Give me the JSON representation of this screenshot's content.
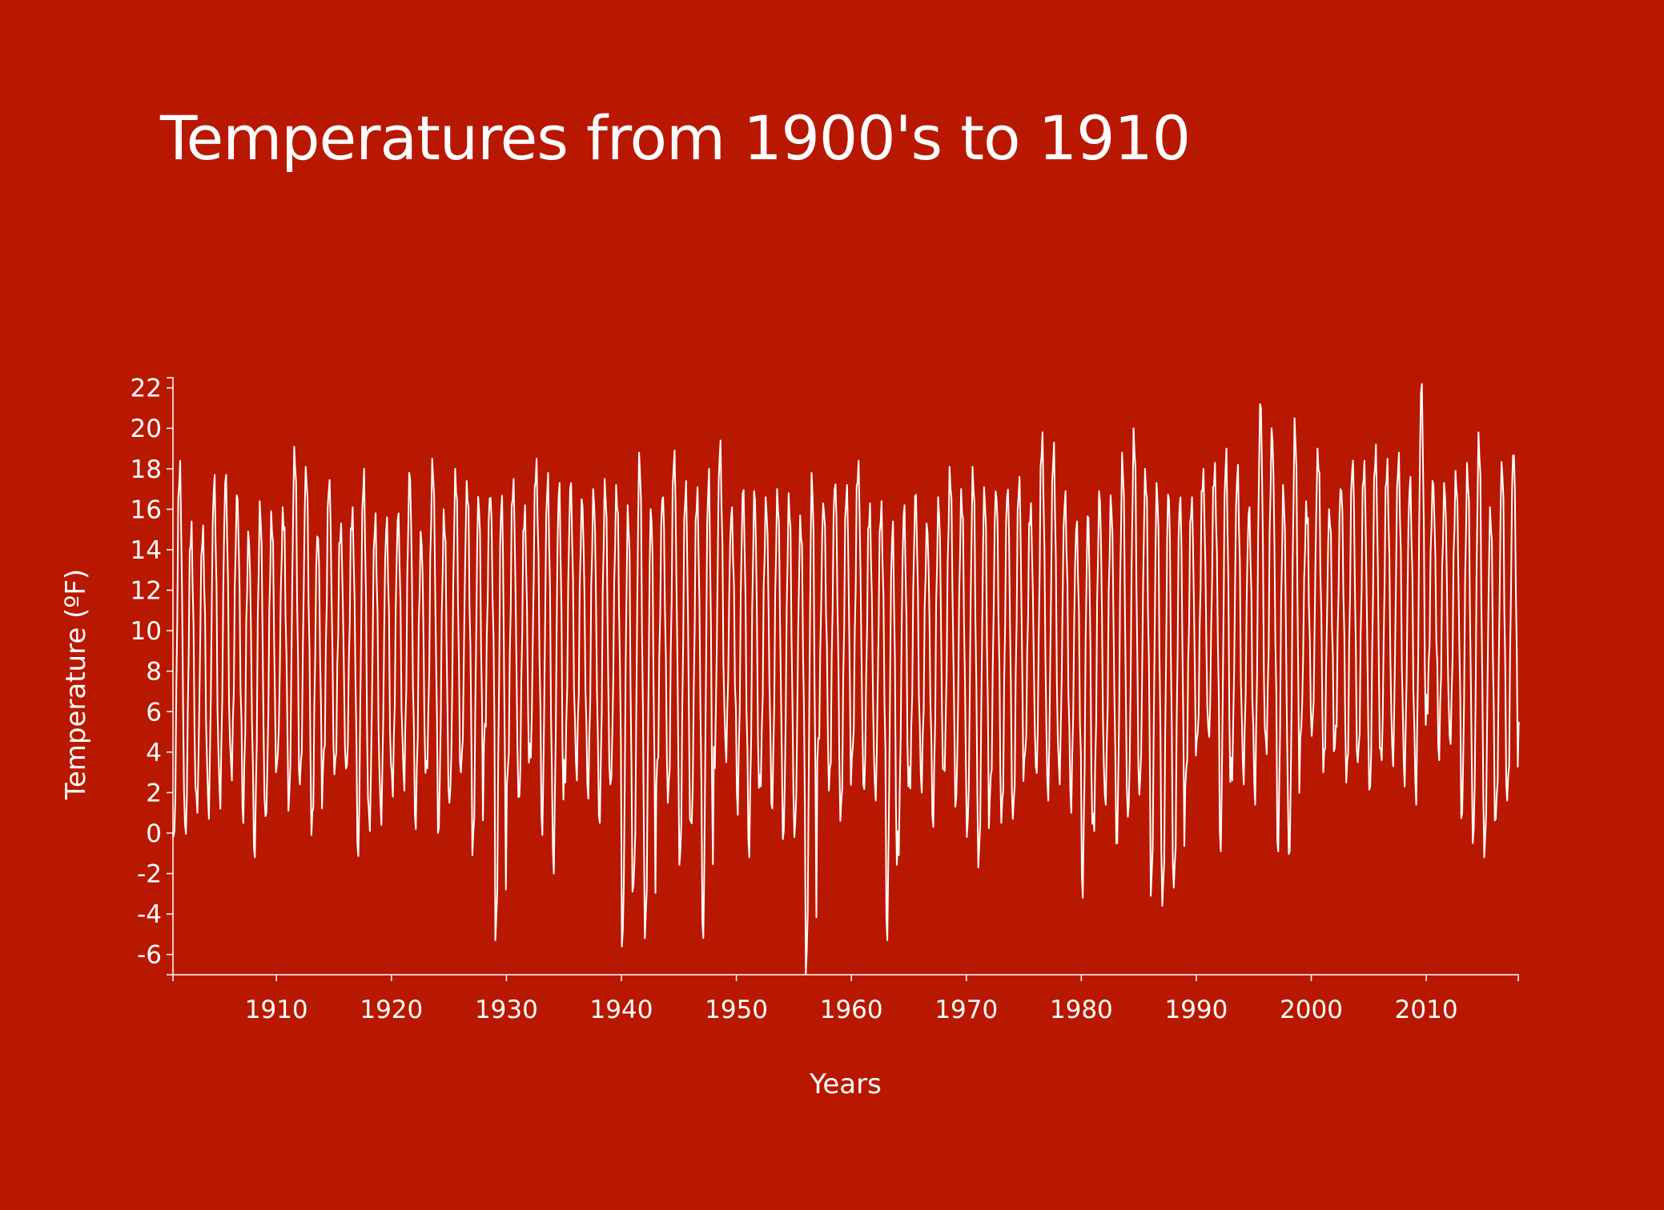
{
  "colors": {
    "background": "#b91800",
    "line": "#ffffff",
    "axis": "#ffffff"
  },
  "chart_data": {
    "type": "line",
    "title": "Temperatures from 1900's to 1910",
    "xlabel": "Years",
    "ylabel": "Temperature (ºF)",
    "xlim": [
      1901,
      2018
    ],
    "ylim": [
      -7,
      22.5
    ],
    "x_ticks": [
      1910,
      1920,
      1930,
      1940,
      1950,
      1960,
      1970,
      1980,
      1990,
      2000,
      2010
    ],
    "y_ticks": [
      22,
      20,
      18,
      16,
      14,
      12,
      10,
      8,
      6,
      4,
      2,
      0,
      -2,
      -4,
      -6
    ],
    "grid": false,
    "legend": "none",
    "series": [
      {
        "frequency": "monthly",
        "x_start": 1901,
        "yearly_max": [
          18.4,
          15.4,
          15.2,
          17.7,
          17.7,
          16.7,
          14.9,
          16.4,
          15.9,
          16.1,
          19.1,
          18.1,
          15.0,
          17.5,
          15.3,
          16.1,
          18.0,
          15.8,
          15.6,
          15.8,
          17.8,
          14.9,
          18.5,
          16.0,
          18.0,
          17.4,
          16.7,
          16.9,
          16.8,
          17.5,
          16.2,
          18.5,
          17.8,
          17.3,
          17.3,
          16.5,
          17.0,
          17.5,
          17.2,
          16.2,
          18.8,
          16.2,
          16.9,
          18.9,
          17.4,
          17.1,
          18.0,
          19.4,
          16.1,
          17.0,
          16.9,
          16.6,
          17.0,
          16.8,
          15.7,
          17.8,
          16.4,
          17.5,
          17.2,
          18.4,
          16.3,
          16.4,
          15.4,
          16.2,
          16.8,
          15.3,
          16.6,
          18.1,
          17.0,
          18.1,
          17.1,
          17.1,
          17.2,
          17.6,
          16.3,
          19.8,
          19.3,
          16.9,
          15.4,
          15.8,
          16.9,
          16.7,
          18.8,
          20.0,
          18.0,
          17.3,
          17.1,
          16.8,
          16.6,
          18.0,
          18.3,
          19.0,
          18.2,
          16.1,
          21.3,
          20.0,
          17.2,
          20.5,
          16.4,
          19.0,
          16.0,
          17.3,
          18.5,
          18.4,
          19.2,
          18.5,
          18.8,
          17.6,
          22.2,
          17.4,
          17.3,
          17.9,
          18.3,
          19.8,
          16.1,
          18.4,
          19.1,
          19.7,
          18.4,
          18.3,
          17.9
        ],
        "yearly_min": [
          -0.5,
          -0.2,
          1.0,
          0.7,
          1.2,
          2.6,
          0.5,
          -1.2,
          0.8,
          3.4,
          1.1,
          2.4,
          -0.1,
          3.1,
          2.9,
          2.9,
          -1.3,
          0.1,
          0.4,
          1.8,
          2.1,
          0.2,
          3.2,
          0.0,
          1.5,
          3.0,
          -1.1,
          4.3,
          -5.3,
          2.4,
          1.4,
          3.7,
          -0.1,
          -2.0,
          2.5,
          2.6,
          1.7,
          0.5,
          2.4,
          -5.6,
          -2.6,
          -5.2,
          2.5,
          1.5,
          -1.7,
          0.1,
          -5.3,
          3.2,
          3.5,
          0.9,
          -1.2,
          2.3,
          1.2,
          -0.3,
          -0.2,
          -7.0,
          3.6,
          2.1,
          0.6,
          3.6,
          1.9,
          1.6,
          -5.3,
          -1.1,
          2.2,
          2.0,
          0.3,
          3.0,
          1.3,
          -0.2,
          -1.7,
          1.7,
          0.5,
          0.7,
          3.5,
          2.7,
          1.6,
          2.4,
          1.0,
          -3.2,
          0.1,
          1.4,
          -0.7,
          0.8,
          1.9,
          -3.1,
          -3.6,
          -2.7,
          2.3,
          4.4,
          4.6,
          -0.9,
          2.6,
          2.4,
          1.4,
          3.9,
          -0.9,
          -1.2,
          4.7,
          4.8,
          3.0,
          4.2,
          2.5,
          3.5,
          1.8,
          3.5,
          3.3,
          2.3,
          1.4,
          5.9,
          3.6,
          4.4,
          0.7,
          -0.5,
          -1.2,
          0.7,
          1.6,
          5.5,
          3.4,
          4.5,
          1.5
        ]
      }
    ]
  }
}
